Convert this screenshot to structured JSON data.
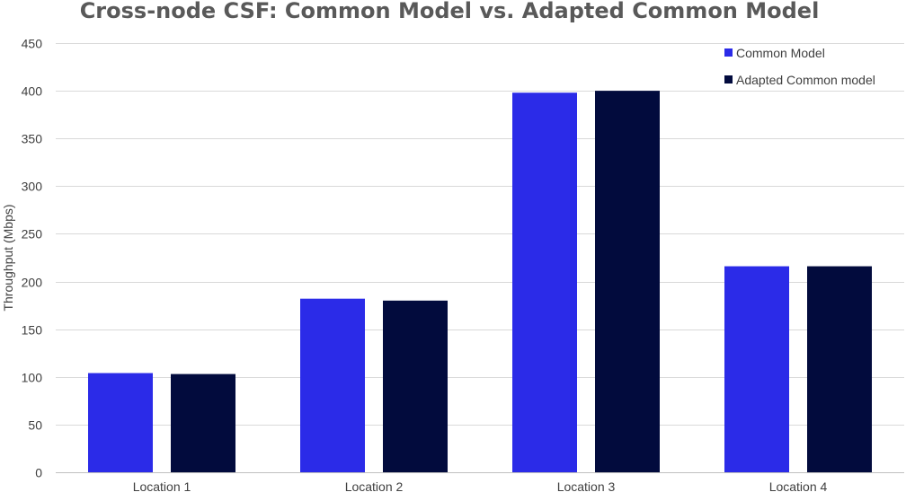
{
  "chart_data": {
    "type": "bar",
    "title": "Cross-node CSF: Common Model vs. Adapted Common Model",
    "xlabel": "",
    "ylabel": "Throughput (Mbps)",
    "categories": [
      "Location 1",
      "Location 2",
      "Location 3",
      "Location 4"
    ],
    "series": [
      {
        "name": "Common Model",
        "color": "#2b2be8",
        "values": [
          104,
          182,
          398,
          216
        ]
      },
      {
        "name": "Adapted Common model",
        "color": "#020b3d",
        "values": [
          103,
          180,
          400,
          216
        ]
      }
    ],
    "ylim": [
      0,
      450
    ],
    "yticks": [
      0,
      50,
      100,
      150,
      200,
      250,
      300,
      350,
      400,
      450
    ],
    "grid": true,
    "legend_position": "top-right"
  }
}
